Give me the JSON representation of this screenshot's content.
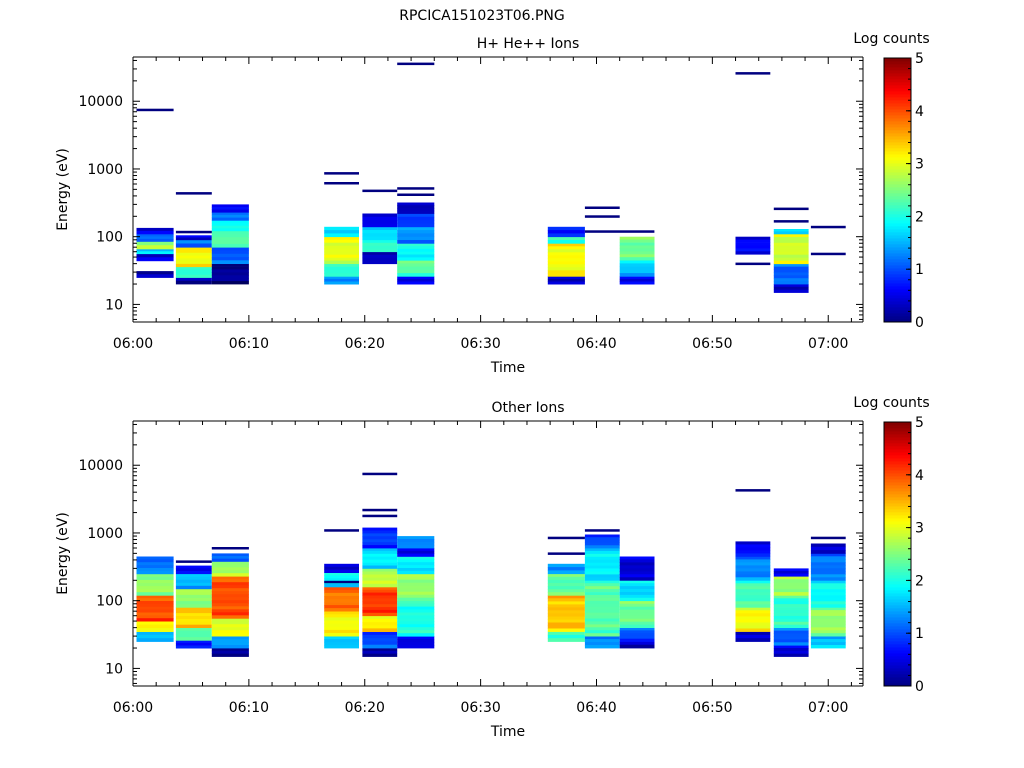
{
  "figure": {
    "title": "RPCICA151023T06.PNG"
  },
  "chart_data": [
    {
      "type": "heatmap",
      "title": "H+ He++ Ions",
      "xlabel": "Time",
      "ylabel": "Energy (eV)",
      "x_ticks": [
        "06:00",
        "06:10",
        "06:20",
        "06:30",
        "06:40",
        "06:50",
        "07:00"
      ],
      "x_range_minutes": [
        0,
        63
      ],
      "y_ticks": [
        "10",
        "100",
        "1000",
        "10000"
      ],
      "y_scale": "log",
      "ylim": [
        5.5,
        45000
      ],
      "colorbar": {
        "label": "Log counts",
        "ticks": [
          "0",
          "1",
          "2",
          "3",
          "4",
          "5"
        ],
        "range": [
          0,
          5
        ],
        "colormap": "jet"
      },
      "blocks": [
        {
          "t0": 0.3,
          "t1": 3.5,
          "cells": [
            [
              25,
              31,
              0.15
            ],
            [
              44,
              56,
              0.35
            ],
            [
              56,
              66,
              1.6
            ],
            [
              66,
              85,
              2.6
            ],
            [
              85,
              110,
              1.2
            ],
            [
              110,
              135,
              0.4
            ]
          ]
        },
        {
          "t0": 3.7,
          "t1": 6.8,
          "cells": [
            [
              20,
              25,
              0.2
            ],
            [
              25,
              36,
              2.0
            ],
            [
              36,
              70,
              3.1
            ],
            [
              70,
              90,
              1.2
            ],
            [
              90,
              105,
              0.5
            ]
          ]
        },
        {
          "t0": 6.8,
          "t1": 10.0,
          "cells": [
            [
              20,
              40,
              0.1
            ],
            [
              40,
              70,
              1.1
            ],
            [
              70,
              110,
              2.4
            ],
            [
              110,
              175,
              2.0
            ],
            [
              175,
              230,
              1.3
            ],
            [
              230,
              300,
              0.7
            ]
          ]
        },
        {
          "t0": 16.5,
          "t1": 19.5,
          "cells": [
            [
              20,
              26,
              1.2
            ],
            [
              26,
              40,
              2.0
            ],
            [
              40,
              100,
              3.0
            ],
            [
              100,
              140,
              1.6
            ]
          ]
        },
        {
          "t0": 19.8,
          "t1": 22.8,
          "cells": [
            [
              40,
              60,
              0.4
            ],
            [
              60,
              90,
              2.2
            ],
            [
              90,
              140,
              1.8
            ],
            [
              140,
              220,
              0.6
            ]
          ]
        },
        {
          "t0": 22.8,
          "t1": 26.0,
          "cells": [
            [
              20,
              26,
              0.4
            ],
            [
              26,
              45,
              2.3
            ],
            [
              45,
              80,
              1.9
            ],
            [
              80,
              140,
              1.3
            ],
            [
              140,
              220,
              0.8
            ],
            [
              220,
              320,
              0.2
            ]
          ]
        },
        {
          "t0": 35.8,
          "t1": 39.0,
          "cells": [
            [
              20,
              26,
              0.2
            ],
            [
              26,
              80,
              3.1
            ],
            [
              80,
              100,
              2.0
            ],
            [
              100,
              140,
              0.6
            ]
          ]
        },
        {
          "t0": 42.0,
          "t1": 45.0,
          "cells": [
            [
              20,
              26,
              0.4
            ],
            [
              26,
              45,
              1.6
            ],
            [
              45,
              100,
              2.4
            ]
          ]
        },
        {
          "t0": 52.0,
          "t1": 55.0,
          "cells": [
            [
              55,
              100,
              0.6
            ]
          ]
        },
        {
          "t0": 55.3,
          "t1": 58.3,
          "cells": [
            [
              15,
              20,
              0.2
            ],
            [
              20,
              40,
              1.1
            ],
            [
              40,
              110,
              2.9
            ],
            [
              110,
              130,
              1.5
            ]
          ]
        }
      ],
      "lines": [
        {
          "t0": 0.3,
          "t1": 3.5,
          "e": 7500
        },
        {
          "t0": 3.7,
          "t1": 6.8,
          "e": 440
        },
        {
          "t0": 3.7,
          "t1": 6.8,
          "e": 118
        },
        {
          "t0": 16.5,
          "t1": 19.5,
          "e": 870
        },
        {
          "t0": 16.5,
          "t1": 19.5,
          "e": 620
        },
        {
          "t0": 19.8,
          "t1": 22.8,
          "e": 480
        },
        {
          "t0": 22.8,
          "t1": 26.0,
          "e": 36000
        },
        {
          "t0": 22.8,
          "t1": 26.0,
          "e": 520
        },
        {
          "t0": 22.8,
          "t1": 26.0,
          "e": 420
        },
        {
          "t0": 39.0,
          "t1": 42.0,
          "e": 270
        },
        {
          "t0": 39.0,
          "t1": 42.0,
          "e": 200
        },
        {
          "t0": 39.0,
          "t1": 45.0,
          "e": 120
        },
        {
          "t0": 52.0,
          "t1": 55.0,
          "e": 26000
        },
        {
          "t0": 52.0,
          "t1": 55.0,
          "e": 40
        },
        {
          "t0": 55.3,
          "t1": 58.3,
          "e": 260
        },
        {
          "t0": 55.3,
          "t1": 58.3,
          "e": 170
        },
        {
          "t0": 58.5,
          "t1": 61.5,
          "e": 140
        },
        {
          "t0": 58.5,
          "t1": 61.5,
          "e": 56
        }
      ]
    },
    {
      "type": "heatmap",
      "title": "Other Ions",
      "xlabel": "Time",
      "ylabel": "Energy (eV)",
      "x_ticks": [
        "06:00",
        "06:10",
        "06:20",
        "06:30",
        "06:40",
        "06:50",
        "07:00"
      ],
      "x_range_minutes": [
        0,
        63
      ],
      "y_ticks": [
        "10",
        "100",
        "1000",
        "10000"
      ],
      "y_scale": "log",
      "ylim": [
        5.5,
        45000
      ],
      "colorbar": {
        "label": "Log counts",
        "ticks": [
          "0",
          "1",
          "2",
          "3",
          "4",
          "5"
        ],
        "range": [
          0,
          5
        ],
        "colormap": "jet"
      },
      "blocks": [
        {
          "t0": 0.3,
          "t1": 3.5,
          "cells": [
            [
              25,
              35,
              1.6
            ],
            [
              35,
              50,
              3.2
            ],
            [
              50,
              120,
              4.0
            ],
            [
              120,
              250,
              2.6
            ],
            [
              250,
              450,
              1.2
            ]
          ]
        },
        {
          "t0": 3.7,
          "t1": 6.8,
          "cells": [
            [
              20,
              26,
              0.6
            ],
            [
              26,
              40,
              2.2
            ],
            [
              40,
              80,
              3.3
            ],
            [
              80,
              150,
              2.6
            ],
            [
              150,
              250,
              1.5
            ],
            [
              250,
              330,
              0.5
            ]
          ]
        },
        {
          "t0": 6.8,
          "t1": 10.0,
          "cells": [
            [
              15,
              20,
              0.2
            ],
            [
              20,
              30,
              1.5
            ],
            [
              30,
              55,
              3.0
            ],
            [
              55,
              230,
              4.0
            ],
            [
              230,
              380,
              2.7
            ],
            [
              380,
              500,
              1.2
            ]
          ]
        },
        {
          "t0": 16.5,
          "t1": 19.5,
          "cells": [
            [
              20,
              30,
              1.5
            ],
            [
              30,
              70,
              3.1
            ],
            [
              70,
              160,
              3.8
            ],
            [
              160,
              260,
              1.8
            ],
            [
              260,
              350,
              0.3
            ]
          ]
        },
        {
          "t0": 19.8,
          "t1": 22.8,
          "cells": [
            [
              15,
              20,
              0.3
            ],
            [
              20,
              35,
              1.0
            ],
            [
              35,
              60,
              3.2
            ],
            [
              60,
              160,
              4.1
            ],
            [
              160,
              300,
              2.8
            ],
            [
              300,
              600,
              1.8
            ],
            [
              600,
              1200,
              0.9
            ]
          ]
        },
        {
          "t0": 22.8,
          "t1": 26.0,
          "cells": [
            [
              20,
              30,
              0.4
            ],
            [
              30,
              100,
              2.0
            ],
            [
              100,
              250,
              2.6
            ],
            [
              250,
              450,
              1.8
            ],
            [
              450,
              600,
              0.4
            ],
            [
              600,
              900,
              1.2
            ]
          ]
        },
        {
          "t0": 35.8,
          "t1": 39.0,
          "cells": [
            [
              25,
              35,
              2.0
            ],
            [
              35,
              120,
              3.4
            ],
            [
              120,
              250,
              2.3
            ],
            [
              250,
              350,
              1.2
            ]
          ]
        },
        {
          "t0": 39.0,
          "t1": 42.0,
          "cells": [
            [
              20,
              30,
              1.4
            ],
            [
              30,
              200,
              2.3
            ],
            [
              200,
              600,
              1.8
            ],
            [
              600,
              950,
              1.0
            ]
          ]
        },
        {
          "t0": 42.0,
          "t1": 45.0,
          "cells": [
            [
              20,
              25,
              0.2
            ],
            [
              25,
              40,
              1.0
            ],
            [
              40,
              100,
              2.4
            ],
            [
              100,
              200,
              1.7
            ],
            [
              200,
              450,
              0.4
            ]
          ]
        },
        {
          "t0": 52.0,
          "t1": 55.0,
          "cells": [
            [
              25,
              35,
              0.5
            ],
            [
              35,
              80,
              3.1
            ],
            [
              80,
              200,
              2.2
            ],
            [
              200,
              450,
              1.3
            ],
            [
              450,
              750,
              0.6
            ]
          ]
        },
        {
          "t0": 55.3,
          "t1": 58.3,
          "cells": [
            [
              15,
              22,
              0.4
            ],
            [
              22,
              40,
              1.1
            ],
            [
              40,
              120,
              2.1
            ],
            [
              120,
              230,
              2.6
            ],
            [
              230,
              300,
              0.4
            ]
          ]
        },
        {
          "t0": 58.5,
          "t1": 61.5,
          "cells": [
            [
              20,
              30,
              1.6
            ],
            [
              30,
              80,
              2.6
            ],
            [
              80,
              200,
              1.9
            ],
            [
              200,
              500,
              1.2
            ],
            [
              500,
              700,
              0.5
            ]
          ]
        }
      ],
      "lines": [
        {
          "t0": 3.7,
          "t1": 6.8,
          "e": 380
        },
        {
          "t0": 6.8,
          "t1": 10.0,
          "e": 600
        },
        {
          "t0": 16.5,
          "t1": 19.5,
          "e": 1100
        },
        {
          "t0": 16.5,
          "t1": 19.5,
          "e": 190
        },
        {
          "t0": 19.8,
          "t1": 22.8,
          "e": 7500
        },
        {
          "t0": 19.8,
          "t1": 22.8,
          "e": 2200
        },
        {
          "t0": 19.8,
          "t1": 22.8,
          "e": 1800
        },
        {
          "t0": 35.8,
          "t1": 39.0,
          "e": 850
        },
        {
          "t0": 35.8,
          "t1": 39.0,
          "e": 500
        },
        {
          "t0": 39.0,
          "t1": 42.0,
          "e": 1100
        },
        {
          "t0": 52.0,
          "t1": 55.0,
          "e": 4300
        },
        {
          "t0": 58.5,
          "t1": 61.5,
          "e": 850
        }
      ]
    }
  ]
}
